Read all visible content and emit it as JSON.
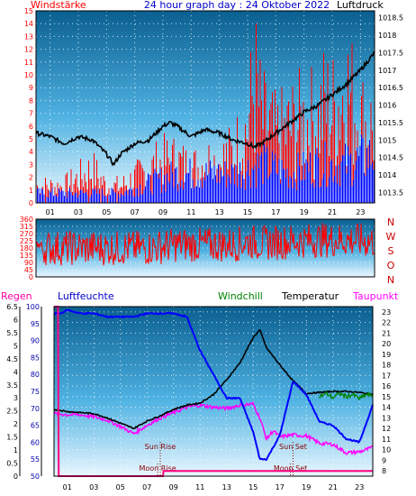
{
  "header": {
    "left": "Windstärke",
    "center": "24 hour graph day : 24 Oktober 2022",
    "right": "Luftdruck"
  },
  "legend2": {
    "regen": "Regen",
    "luftfeuchte": "Luftfeuchte",
    "windchill": "Windchill",
    "temperatur": "Temperatur",
    "taupunkt": "Taupunkt"
  },
  "colors": {
    "wind": "#ff0000",
    "windFill": "#ff0000",
    "windBlue": "#0000ff",
    "pressure": "#000000",
    "humidity": "#0000ff",
    "temperature": "#000000",
    "dewpoint": "#ff00ff",
    "rain": "#ff0080",
    "windchill": "#008000",
    "skyTop": "#005f8f",
    "skyBottom": "#e8f6ff"
  },
  "chart_data": [
    {
      "type": "bar",
      "title": "24 hour graph day : 24 Oktober 2022",
      "x_tick_labels": [
        "01",
        "03",
        "05",
        "07",
        "09",
        "11",
        "13",
        "15",
        "17",
        "19",
        "21",
        "23"
      ],
      "xlim": [
        0,
        24
      ],
      "left_axis": {
        "label": "Windstärke",
        "ylim": [
          0,
          15
        ],
        "ticks": [
          0,
          1,
          2,
          3,
          4,
          5,
          6,
          7,
          8,
          9,
          10,
          11,
          12,
          13,
          14,
          15
        ]
      },
      "right_axis": {
        "label": "Luftdruck",
        "ylim": [
          1013.2,
          1018.7
        ],
        "ticks": [
          1013.5,
          1014,
          1014.5,
          1015,
          1015.5,
          1016,
          1016.5,
          1017,
          1017.5,
          1018,
          1018.5
        ]
      },
      "series": [
        {
          "name": "Luftdruck",
          "axis": "right",
          "x": [
            0,
            1,
            2,
            3,
            4,
            5,
            5.5,
            6,
            7,
            8,
            9,
            9.5,
            10,
            11,
            12,
            13,
            14,
            15,
            15.5,
            16,
            17,
            18,
            19,
            20,
            21,
            22,
            23,
            24
          ],
          "values": [
            1015.2,
            1015.1,
            1014.9,
            1015.1,
            1015.0,
            1014.6,
            1014.3,
            1014.6,
            1014.9,
            1015.0,
            1015.4,
            1015.5,
            1015.4,
            1015.1,
            1015.3,
            1015.2,
            1015.0,
            1014.9,
            1014.8,
            1014.9,
            1015.2,
            1015.5,
            1015.8,
            1016.0,
            1016.3,
            1016.6,
            1017.0,
            1017.5
          ]
        },
        {
          "name": "Windstärke",
          "axis": "left",
          "x": [
            0,
            1,
            2,
            3,
            4,
            5,
            6,
            7,
            8,
            9,
            10,
            11,
            12,
            13,
            14,
            15,
            15.5,
            16,
            17,
            18,
            19,
            20,
            20.5,
            21,
            22,
            23,
            24
          ],
          "values": [
            2,
            2,
            2,
            3,
            4,
            2,
            2,
            3,
            4,
            5,
            5,
            4,
            5,
            5,
            6,
            9,
            15,
            10,
            8,
            9,
            10,
            10,
            12,
            11,
            14,
            10,
            9
          ]
        },
        {
          "name": "Windstärke (blue)",
          "axis": "left",
          "x": [
            0,
            2,
            4,
            6,
            8,
            10,
            12,
            14,
            16,
            18,
            20,
            22,
            24
          ],
          "values": [
            1,
            1,
            1,
            1,
            2,
            3,
            3,
            3,
            4,
            3,
            4,
            4,
            5
          ]
        }
      ]
    },
    {
      "type": "scatter",
      "left_axis": {
        "ylim": [
          0,
          360
        ],
        "ticks": [
          0,
          45,
          90,
          135,
          180,
          225,
          270,
          315,
          360
        ]
      },
      "right_axis": {
        "labels": [
          "N",
          "W",
          "S",
          "O",
          "N"
        ]
      },
      "xlim": [
        0,
        24
      ],
      "series": [
        {
          "name": "Windrichtung",
          "x": [
            0,
            2,
            4,
            6,
            8,
            10,
            12,
            14,
            15,
            16,
            18,
            20,
            22,
            24
          ],
          "values": [
            180,
            180,
            180,
            180,
            180,
            200,
            200,
            200,
            220,
            210,
            220,
            230,
            230,
            220
          ]
        }
      ]
    },
    {
      "type": "line",
      "x_tick_labels": [
        "01",
        "03",
        "05",
        "07",
        "09",
        "11",
        "13",
        "15",
        "17",
        "19",
        "21",
        "23"
      ],
      "xlim": [
        0,
        24
      ],
      "axes": {
        "regen": {
          "label": "Regen",
          "ylim": [
            0,
            6.5
          ],
          "ticks": [
            0,
            0.5,
            1,
            1.5,
            2,
            2.5,
            3,
            3.5,
            4,
            4.5,
            5,
            5.5,
            6,
            6.5
          ]
        },
        "luftfeuchte": {
          "label": "Luftfeuchte",
          "ylim": [
            50,
            100
          ],
          "ticks": [
            50,
            55,
            60,
            65,
            70,
            75,
            80,
            85,
            90,
            95,
            100
          ]
        },
        "temperatur": {
          "label": "Temperatur",
          "ylim": [
            7.5,
            23.5
          ],
          "ticks": [
            8,
            9,
            10,
            11,
            12,
            13,
            14,
            15,
            16,
            17,
            18,
            19,
            20,
            21,
            22,
            23
          ]
        }
      },
      "annotations": [
        {
          "text": "Sun Rise",
          "x": 8.0
        },
        {
          "text": "Moon Rise",
          "x": 7.8
        },
        {
          "text": "Sun Set",
          "x": 18.0
        },
        {
          "text": "Moon Set",
          "x": 17.8
        }
      ],
      "series": [
        {
          "name": "Luftfeuchte",
          "axis": "luftfeuchte",
          "x": [
            0,
            0.5,
            1,
            2,
            3,
            4,
            5,
            6,
            7,
            8,
            8.5,
            9,
            10,
            11,
            12,
            13,
            14,
            15,
            15.5,
            16,
            17,
            18,
            19,
            20,
            21,
            22,
            23,
            24
          ],
          "values": [
            98,
            98,
            99,
            98,
            98,
            97,
            97,
            97,
            98,
            98,
            98,
            98,
            97,
            87,
            80,
            73,
            73,
            63,
            55,
            55,
            62,
            78,
            74,
            66,
            65,
            61,
            60,
            71
          ]
        },
        {
          "name": "Temperatur",
          "axis": "temperatur",
          "x": [
            0,
            1,
            2,
            3,
            4,
            5,
            6,
            7,
            8,
            9,
            10,
            11,
            12,
            13,
            14,
            15,
            15.5,
            16,
            17,
            18,
            19,
            20,
            21,
            22,
            23,
            24
          ],
          "values": [
            13.8,
            13.6,
            13.5,
            13.4,
            13.0,
            12.5,
            12.0,
            12.7,
            13.2,
            13.8,
            14.2,
            14.4,
            15.2,
            16.6,
            18.2,
            20.6,
            21.3,
            19.6,
            18.0,
            16.5,
            15.3,
            15.4,
            15.5,
            15.5,
            15.4,
            15.2
          ]
        },
        {
          "name": "Windchill",
          "axis": "temperatur",
          "x": [
            20,
            20.5,
            21,
            21.5,
            22,
            22.5,
            23,
            23.5,
            24
          ],
          "values": [
            15.0,
            15.3,
            14.9,
            15.3,
            15.0,
            15.2,
            14.8,
            15.2,
            15.1
          ]
        },
        {
          "name": "Taupunkt",
          "axis": "temperatur",
          "x": [
            0,
            1,
            2,
            3,
            4,
            5,
            6,
            7,
            8,
            9,
            10,
            11,
            12,
            13,
            14,
            15,
            15.5,
            16,
            16.5,
            17,
            18,
            19,
            20,
            21,
            22,
            23,
            24
          ],
          "values": [
            13.4,
            13.3,
            13.3,
            13.1,
            12.8,
            12.2,
            11.5,
            12.3,
            13.0,
            13.5,
            14.0,
            14.2,
            14.0,
            13.9,
            14.2,
            14.3,
            13.0,
            11.0,
            11.8,
            11.2,
            11.4,
            11.3,
            10.6,
            10.5,
            9.7,
            9.8,
            10.2
          ]
        },
        {
          "name": "Regen",
          "axis": "regen",
          "x": [
            0,
            0.3,
            0.35,
            8.2,
            8.25,
            24
          ],
          "values": [
            6.5,
            6.5,
            0,
            0,
            0.2,
            0.2
          ]
        }
      ]
    }
  ]
}
